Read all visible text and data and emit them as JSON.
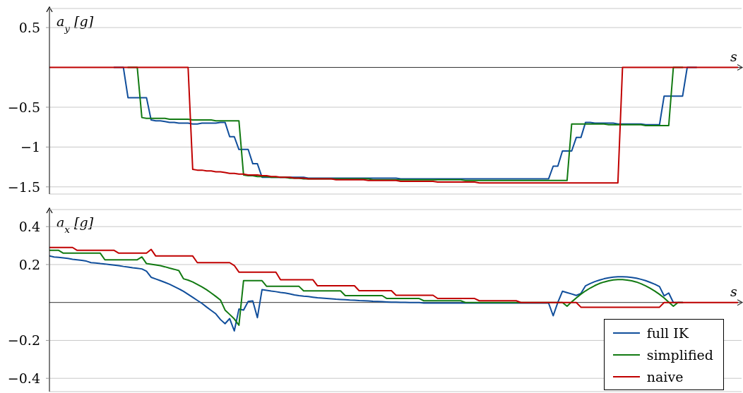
{
  "chart_data": [
    {
      "type": "line",
      "xlabel": "s",
      "ylabel": "a$_{y}$ [g]",
      "categories": [
        null,
        null,
        null,
        null,
        null,
        null,
        null,
        null,
        null,
        null,
        null,
        null,
        null,
        null,
        null,
        null,
        null,
        null,
        null,
        null,
        null,
        null,
        null,
        null,
        null,
        null,
        null,
        null,
        null,
        null,
        null,
        null,
        null,
        null,
        null,
        null,
        null,
        null,
        null,
        null,
        null,
        null,
        null,
        null,
        null,
        null,
        null,
        null,
        null,
        null,
        null,
        null,
        null,
        null,
        null,
        null,
        null,
        null,
        null,
        null,
        null,
        null,
        null,
        null,
        null,
        null,
        null,
        null,
        null,
        null,
        null,
        null,
        null,
        null,
        null,
        null,
        null,
        null,
        null,
        null,
        null,
        null,
        null,
        null,
        null,
        null,
        null,
        null,
        null,
        null,
        null,
        null,
        null,
        null,
        null,
        null,
        null,
        null,
        null,
        null,
        null,
        null,
        null,
        null,
        null,
        null,
        null,
        null,
        null,
        null,
        null,
        null,
        null,
        null,
        null,
        null,
        null,
        null,
        null,
        null,
        null,
        null,
        null,
        null,
        null,
        null,
        null,
        null,
        null,
        null,
        null,
        null,
        null,
        null,
        null,
        null,
        null,
        null,
        null,
        null,
        null,
        null,
        null,
        null,
        null,
        null,
        null,
        null,
        null,
        null
      ],
      "series": [
        {
          "color": "#104e9b",
          "values": [
            null,
            null,
            null,
            null,
            null,
            null,
            null,
            null,
            null,
            null,
            null,
            null,
            null,
            null,
            0,
            0,
            0,
            -0.38,
            -0.38,
            -0.38,
            -0.38,
            -0.38,
            -0.66,
            -0.67,
            -0.67,
            -0.68,
            -0.69,
            -0.69,
            -0.7,
            -0.7,
            -0.7,
            -0.71,
            -0.71,
            -0.7,
            -0.7,
            -0.7,
            -0.7,
            -0.69,
            -0.69,
            -0.87,
            -0.87,
            -1.03,
            -1.03,
            -1.03,
            -1.21,
            -1.21,
            -1.38,
            -1.38,
            -1.38,
            -1.38,
            -1.38,
            -1.38,
            -1.38,
            -1.38,
            -1.38,
            -1.38,
            -1.39,
            -1.39,
            -1.39,
            -1.39,
            -1.39,
            -1.39,
            -1.39,
            -1.39,
            -1.39,
            -1.39,
            -1.39,
            -1.39,
            -1.39,
            -1.39,
            -1.39,
            -1.39,
            -1.39,
            -1.39,
            -1.39,
            -1.39,
            -1.4,
            -1.4,
            -1.4,
            -1.4,
            -1.4,
            -1.4,
            -1.4,
            -1.4,
            -1.4,
            -1.4,
            -1.4,
            -1.4,
            -1.4,
            -1.4,
            -1.4,
            -1.4,
            -1.4,
            -1.4,
            -1.4,
            -1.4,
            -1.4,
            -1.4,
            -1.4,
            -1.4,
            -1.4,
            -1.4,
            -1.4,
            -1.4,
            -1.4,
            -1.4,
            -1.4,
            -1.4,
            -1.4,
            -1.24,
            -1.24,
            -1.05,
            -1.05,
            -1.05,
            -0.88,
            -0.88,
            -0.69,
            -0.69,
            -0.7,
            -0.7,
            -0.7,
            -0.7,
            -0.7,
            -0.71,
            -0.71,
            -0.71,
            -0.71,
            -0.71,
            -0.71,
            -0.72,
            -0.72,
            -0.72,
            -0.72,
            -0.36,
            -0.36,
            -0.36,
            -0.36,
            -0.36,
            0,
            0,
            0,
            null,
            null,
            null,
            null,
            null,
            null,
            null,
            null,
            null
          ]
        },
        {
          "color": "#127a12",
          "values": [
            null,
            null,
            null,
            null,
            null,
            null,
            null,
            null,
            null,
            null,
            null,
            null,
            null,
            null,
            null,
            null,
            null,
            0,
            0,
            0,
            -0.63,
            -0.64,
            -0.64,
            -0.64,
            -0.64,
            -0.64,
            -0.65,
            -0.65,
            -0.65,
            -0.65,
            -0.65,
            -0.66,
            -0.66,
            -0.66,
            -0.66,
            -0.66,
            -0.67,
            -0.67,
            -0.67,
            -0.67,
            -0.67,
            -0.67,
            -1.35,
            -1.36,
            -1.36,
            -1.37,
            -1.37,
            -1.37,
            -1.38,
            -1.38,
            -1.38,
            -1.38,
            -1.39,
            -1.39,
            -1.39,
            -1.4,
            -1.4,
            -1.4,
            -1.4,
            -1.4,
            -1.4,
            -1.4,
            -1.4,
            -1.4,
            -1.4,
            -1.4,
            -1.4,
            -1.4,
            -1.4,
            -1.4,
            -1.41,
            -1.41,
            -1.41,
            -1.41,
            -1.41,
            -1.41,
            -1.41,
            -1.41,
            -1.41,
            -1.41,
            -1.41,
            -1.41,
            -1.41,
            -1.41,
            -1.41,
            -1.41,
            -1.41,
            -1.41,
            -1.41,
            -1.41,
            -1.42,
            -1.42,
            -1.42,
            -1.42,
            -1.42,
            -1.42,
            -1.42,
            -1.42,
            -1.42,
            -1.42,
            -1.42,
            -1.42,
            -1.42,
            -1.42,
            -1.42,
            -1.42,
            -1.42,
            -1.42,
            -1.42,
            -1.42,
            -1.42,
            -1.42,
            -1.42,
            -0.71,
            -0.71,
            -0.71,
            -0.71,
            -0.71,
            -0.71,
            -0.71,
            -0.71,
            -0.72,
            -0.72,
            -0.72,
            -0.72,
            -0.72,
            -0.72,
            -0.72,
            -0.72,
            -0.73,
            -0.73,
            -0.73,
            -0.73,
            -0.73,
            -0.73,
            0,
            0,
            0,
            null,
            null,
            null,
            null,
            null,
            null,
            null,
            null,
            null,
            null,
            null,
            null
          ]
        },
        {
          "color": "#c00000",
          "values": [
            0,
            0,
            0,
            0,
            0,
            0,
            0,
            0,
            0,
            0,
            0,
            0,
            0,
            0,
            0,
            0,
            0,
            0,
            0,
            0,
            0,
            0,
            0,
            0,
            0,
            0,
            0,
            0,
            0,
            0,
            0,
            -1.28,
            -1.29,
            -1.29,
            -1.3,
            -1.3,
            -1.31,
            -1.31,
            -1.32,
            -1.33,
            -1.33,
            -1.34,
            -1.34,
            -1.35,
            -1.35,
            -1.35,
            -1.36,
            -1.36,
            -1.37,
            -1.37,
            -1.38,
            -1.38,
            -1.38,
            -1.39,
            -1.39,
            -1.39,
            -1.4,
            -1.4,
            -1.4,
            -1.4,
            -1.4,
            -1.4,
            -1.41,
            -1.41,
            -1.41,
            -1.41,
            -1.41,
            -1.41,
            -1.41,
            -1.42,
            -1.42,
            -1.42,
            -1.42,
            -1.42,
            -1.42,
            -1.42,
            -1.43,
            -1.43,
            -1.43,
            -1.43,
            -1.43,
            -1.43,
            -1.43,
            -1.43,
            -1.44,
            -1.44,
            -1.44,
            -1.44,
            -1.44,
            -1.44,
            -1.44,
            -1.44,
            -1.44,
            -1.45,
            -1.45,
            -1.45,
            -1.45,
            -1.45,
            -1.45,
            -1.45,
            -1.45,
            -1.45,
            -1.45,
            -1.45,
            -1.45,
            -1.45,
            -1.45,
            -1.45,
            -1.45,
            -1.45,
            -1.45,
            -1.45,
            -1.45,
            -1.45,
            -1.45,
            -1.45,
            -1.45,
            -1.45,
            -1.45,
            -1.45,
            -1.45,
            -1.45,
            -1.45,
            -1.45,
            0,
            0,
            0,
            0,
            0,
            0,
            0,
            0,
            0,
            0,
            0,
            0,
            0,
            0,
            0,
            0,
            0,
            0,
            0,
            0,
            0,
            0,
            0,
            0,
            0,
            0
          ]
        }
      ],
      "ylim": [
        -1.59,
        0.74
      ],
      "yticks": [
        {
          "value": -1.5,
          "label": "−1.5"
        },
        {
          "value": -1,
          "label": "−1"
        },
        {
          "value": -0.5,
          "label": "−0.5"
        },
        0.5
      ],
      "grid": "y"
    },
    {
      "type": "line",
      "xlabel": "s",
      "ylabel": "a$_{x}$ [g]",
      "categories": [
        null,
        null,
        null,
        null,
        null,
        null,
        null,
        null,
        null,
        null,
        null,
        null,
        null,
        null,
        null,
        null,
        null,
        null,
        null,
        null,
        null,
        null,
        null,
        null,
        null,
        null,
        null,
        null,
        null,
        null,
        null,
        null,
        null,
        null,
        null,
        null,
        null,
        null,
        null,
        null,
        null,
        null,
        null,
        null,
        null,
        null,
        null,
        null,
        null,
        null,
        null,
        null,
        null,
        null,
        null,
        null,
        null,
        null,
        null,
        null,
        null,
        null,
        null,
        null,
        null,
        null,
        null,
        null,
        null,
        null,
        null,
        null,
        null,
        null,
        null,
        null,
        null,
        null,
        null,
        null,
        null,
        null,
        null,
        null,
        null,
        null,
        null,
        null,
        null,
        null,
        null,
        null,
        null,
        null,
        null,
        null,
        null,
        null,
        null,
        null,
        null,
        null,
        null,
        null,
        null,
        null,
        null,
        null,
        null,
        null,
        null,
        null,
        null,
        null,
        null,
        null,
        null,
        null,
        null,
        null,
        null,
        null,
        null,
        null,
        null,
        null,
        null,
        null,
        null,
        null,
        null,
        null,
        null,
        null,
        null,
        null,
        null,
        null,
        null,
        null,
        null,
        null,
        null,
        null,
        null,
        null,
        null,
        null,
        null,
        null
      ],
      "series": [
        {
          "name": "full IK",
          "color": "#104e9b",
          "values": [
            0.245,
            0.24,
            0.238,
            0.235,
            0.232,
            0.228,
            0.225,
            0.222,
            0.218,
            0.21,
            0.208,
            0.205,
            0.203,
            0.2,
            0.197,
            0.194,
            0.19,
            0.187,
            0.183,
            0.18,
            0.177,
            0.165,
            0.133,
            0.124,
            0.115,
            0.106,
            0.096,
            0.084,
            0.072,
            0.059,
            0.043,
            0.027,
            0.011,
            -0.005,
            -0.024,
            -0.042,
            -0.06,
            -0.09,
            -0.112,
            -0.085,
            -0.15,
            -0.035,
            -0.04,
            0.005,
            0.008,
            -0.08,
            0.068,
            0.064,
            0.06,
            0.057,
            0.053,
            0.05,
            0.045,
            0.04,
            0.036,
            0.033,
            0.031,
            0.028,
            0.025,
            0.023,
            0.021,
            0.019,
            0.017,
            0.016,
            0.015,
            0.013,
            0.012,
            0.01,
            0.009,
            0.008,
            0.006,
            0.005,
            0.004,
            0.003,
            0.002,
            0.002,
            0.001,
            0.001,
            0,
            0,
            0,
            -0.003,
            -0.003,
            -0.003,
            -0.003,
            -0.003,
            -0.003,
            -0.003,
            -0.003,
            -0.003,
            -0.003,
            -0.003,
            -0.003,
            -0.003,
            -0.003,
            -0.003,
            -0.003,
            -0.003,
            -0.003,
            -0.003,
            -0.003,
            -0.003,
            -0.003,
            -0.003,
            -0.003,
            -0.003,
            -0.003,
            -0.003,
            -0.003,
            -0.07,
            0,
            0.059,
            0.052,
            0.045,
            0.037,
            0.048,
            0.088,
            0.1,
            0.11,
            0.118,
            0.125,
            0.13,
            0.134,
            0.136,
            0.136,
            0.135,
            0.132,
            0.128,
            0.122,
            0.115,
            0.106,
            0.096,
            0.084,
            0.035,
            0.05,
            0,
            0,
            0,
            null,
            null,
            null,
            null,
            null,
            null,
            null,
            null,
            null,
            null,
            null,
            null
          ]
        },
        {
          "name": "simplified",
          "color": "#127a12",
          "values": [
            0.275,
            0.275,
            0.275,
            0.26,
            0.26,
            0.26,
            0.26,
            0.26,
            0.26,
            0.26,
            0.26,
            0.26,
            0.225,
            0.225,
            0.225,
            0.225,
            0.225,
            0.225,
            0.225,
            0.225,
            0.24,
            0.205,
            0.202,
            0.198,
            0.194,
            0.188,
            0.181,
            0.175,
            0.168,
            0.125,
            0.118,
            0.108,
            0.095,
            0.082,
            0.067,
            0.05,
            0.032,
            0.013,
            -0.04,
            -0.063,
            -0.087,
            -0.12,
            0.115,
            0.115,
            0.115,
            0.115,
            0.115,
            0.085,
            0.085,
            0.085,
            0.085,
            0.085,
            0.085,
            0.085,
            0.085,
            0.061,
            0.061,
            0.061,
            0.061,
            0.061,
            0.061,
            0.061,
            0.061,
            0.061,
            0.036,
            0.036,
            0.036,
            0.036,
            0.036,
            0.036,
            0.036,
            0.036,
            0.036,
            0.021,
            0.021,
            0.021,
            0.021,
            0.021,
            0.021,
            0.021,
            0.021,
            0.009,
            0.009,
            0.009,
            0.009,
            0.009,
            0.009,
            0.009,
            0.009,
            0.009,
            0,
            0,
            0,
            0,
            0,
            0,
            0,
            0,
            0,
            0,
            0,
            0,
            0,
            0,
            0,
            0,
            0,
            0,
            0,
            0,
            0,
            0,
            -0.02,
            0.003,
            0.024,
            0.044,
            0.061,
            0.076,
            0.089,
            0.1,
            0.108,
            0.114,
            0.119,
            0.121,
            0.121,
            0.118,
            0.114,
            0.108,
            0.099,
            0.088,
            0.075,
            0.06,
            0.043,
            0.024,
            0.002,
            -0.02,
            0,
            0,
            null,
            null,
            null,
            null,
            null,
            null,
            null,
            null,
            null,
            null,
            null,
            null
          ]
        },
        {
          "name": "naive",
          "color": "#c00000",
          "values": [
            0.29,
            0.29,
            0.29,
            0.29,
            0.29,
            0.29,
            0.275,
            0.275,
            0.275,
            0.275,
            0.275,
            0.275,
            0.275,
            0.275,
            0.275,
            0.26,
            0.26,
            0.26,
            0.26,
            0.26,
            0.26,
            0.26,
            0.28,
            0.245,
            0.245,
            0.245,
            0.245,
            0.245,
            0.245,
            0.245,
            0.245,
            0.245,
            0.21,
            0.21,
            0.21,
            0.21,
            0.21,
            0.21,
            0.21,
            0.21,
            0.195,
            0.16,
            0.16,
            0.16,
            0.16,
            0.16,
            0.16,
            0.16,
            0.16,
            0.16,
            0.12,
            0.12,
            0.12,
            0.12,
            0.12,
            0.12,
            0.12,
            0.12,
            0.088,
            0.088,
            0.088,
            0.088,
            0.088,
            0.088,
            0.088,
            0.088,
            0.088,
            0.062,
            0.062,
            0.062,
            0.062,
            0.062,
            0.062,
            0.062,
            0.062,
            0.038,
            0.038,
            0.038,
            0.038,
            0.038,
            0.038,
            0.038,
            0.038,
            0.038,
            0.021,
            0.021,
            0.021,
            0.021,
            0.021,
            0.021,
            0.021,
            0.021,
            0.021,
            0.009,
            0.009,
            0.009,
            0.009,
            0.009,
            0.009,
            0.009,
            0.009,
            0.009,
            0,
            0,
            0,
            0,
            0,
            0,
            0,
            0,
            0,
            0,
            0,
            0,
            0,
            -0.025,
            -0.025,
            -0.025,
            -0.025,
            -0.025,
            -0.025,
            -0.025,
            -0.025,
            -0.025,
            -0.025,
            -0.025,
            -0.025,
            -0.025,
            -0.025,
            -0.025,
            -0.025,
            -0.025,
            -0.025,
            0,
            0,
            0,
            0,
            0,
            0,
            0,
            0,
            0,
            0,
            0,
            0,
            0,
            0,
            0,
            0,
            0
          ]
        }
      ],
      "ylim": [
        -0.47,
        0.49
      ],
      "yticks": [
        {
          "value": -0.4,
          "label": "−0.4"
        },
        {
          "value": -0.2,
          "label": "−0.2"
        },
        0.2,
        0.4
      ],
      "grid": "y",
      "legend": "bottom right"
    }
  ]
}
